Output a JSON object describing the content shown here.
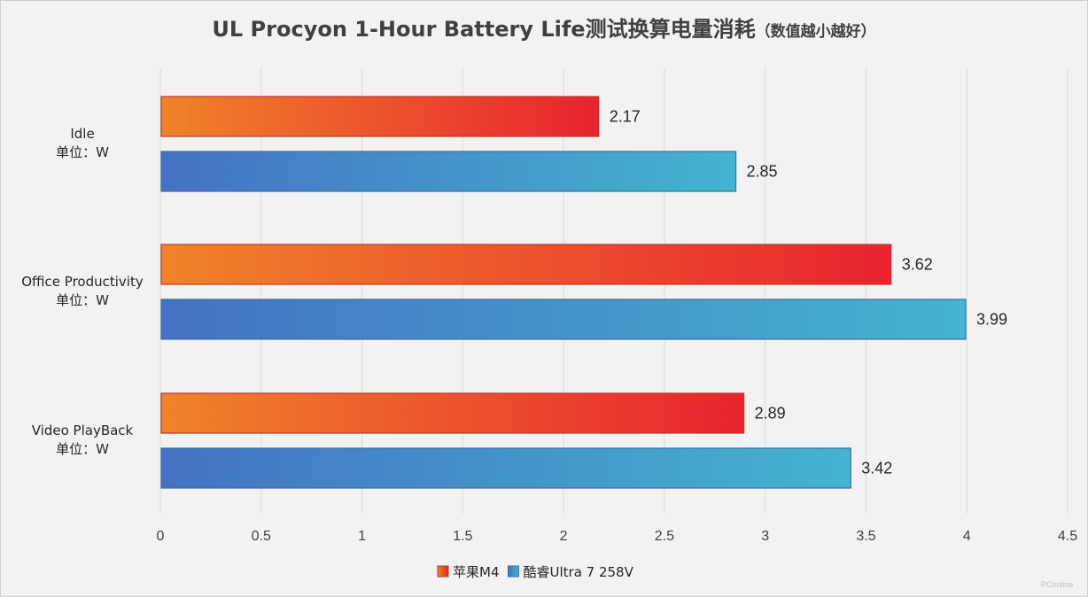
{
  "chart_data": {
    "type": "bar",
    "orientation": "horizontal",
    "title": "UL Procyon 1-Hour Battery Life测试换算电量消耗",
    "subtitle": "（数值越小越好）",
    "categories": [
      [
        "Idle",
        "单位：W"
      ],
      [
        "Office Productivity",
        "单位：W"
      ],
      [
        "Video PlayBack",
        "单位：W"
      ]
    ],
    "series": [
      {
        "name": "苹果M4",
        "values": [
          2.17,
          3.62,
          2.89
        ],
        "colors": [
          "#f0832a",
          "#e8232f"
        ]
      },
      {
        "name": "酷睿Ultra 7 258V",
        "values": [
          2.85,
          3.99,
          3.42
        ],
        "colors": [
          "#4472c4",
          "#44b4cf"
        ]
      }
    ],
    "xlim": [
      0,
      4.5
    ],
    "xticks": [
      "0",
      "0.5",
      "1",
      "1.5",
      "2",
      "2.5",
      "3",
      "3.5",
      "4",
      "4.5"
    ],
    "grid": "vertical",
    "legend_position": "bottom"
  },
  "watermark": "PConline"
}
